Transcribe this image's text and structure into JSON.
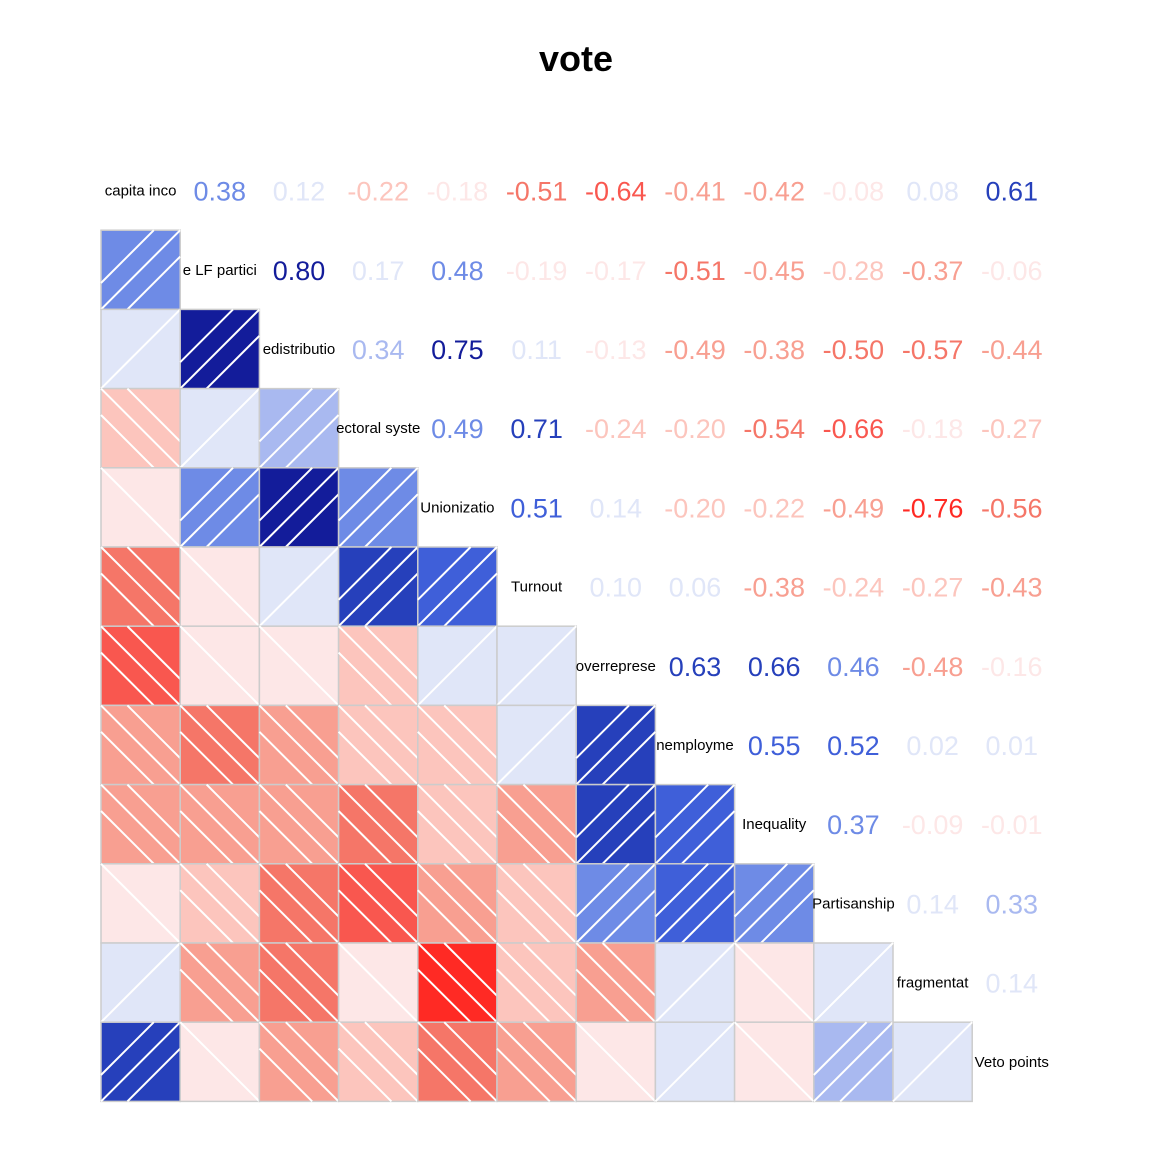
{
  "chart_data": {
    "type": "heatmap",
    "title": "vote",
    "variables": [
      "capita inco",
      "e LF partici",
      "edistributio",
      "ectoral syste",
      "Unionizatio",
      "Turnout",
      "overreprese",
      "nemployme",
      "Inequality",
      "Partisanship",
      "fragmentat",
      "Veto points"
    ],
    "matrix": [
      [
        1,
        0.38,
        0.12,
        -0.22,
        -0.18,
        -0.51,
        -0.64,
        -0.41,
        -0.42,
        -0.08,
        0.08,
        0.61
      ],
      [
        0.38,
        1,
        0.8,
        0.17,
        0.48,
        -0.19,
        -0.17,
        -0.51,
        -0.45,
        -0.28,
        -0.37,
        -0.06
      ],
      [
        0.12,
        0.8,
        1,
        0.34,
        0.75,
        0.11,
        -0.13,
        -0.49,
        -0.38,
        -0.5,
        -0.57,
        -0.44
      ],
      [
        -0.22,
        0.17,
        0.34,
        1,
        0.49,
        0.71,
        -0.24,
        -0.2,
        -0.54,
        -0.66,
        -0.18,
        -0.27
      ],
      [
        -0.18,
        0.48,
        0.75,
        0.49,
        1,
        0.51,
        0.14,
        -0.2,
        -0.22,
        -0.49,
        -0.76,
        -0.56
      ],
      [
        -0.51,
        -0.19,
        0.11,
        0.71,
        0.51,
        1,
        0.1,
        0.06,
        -0.38,
        -0.24,
        -0.27,
        -0.43
      ],
      [
        -0.64,
        -0.17,
        -0.13,
        -0.24,
        0.14,
        0.1,
        1,
        0.63,
        0.66,
        0.46,
        -0.48,
        -0.16
      ],
      [
        -0.41,
        -0.51,
        -0.49,
        -0.2,
        -0.2,
        0.06,
        0.63,
        1,
        0.55,
        0.52,
        0.02,
        0.01
      ],
      [
        -0.42,
        -0.45,
        -0.38,
        -0.54,
        -0.22,
        -0.38,
        0.66,
        0.55,
        1,
        0.37,
        -0.09,
        -0.01
      ],
      [
        -0.08,
        -0.28,
        -0.5,
        -0.66,
        -0.49,
        -0.24,
        0.46,
        0.52,
        0.37,
        1,
        0.14,
        0.33
      ],
      [
        0.08,
        -0.37,
        -0.57,
        -0.18,
        -0.76,
        -0.27,
        -0.48,
        0.02,
        -0.09,
        0.14,
        1,
        0.14
      ],
      [
        0.61,
        -0.06,
        -0.44,
        -0.27,
        -0.56,
        -0.43,
        -0.16,
        0.01,
        -0.01,
        0.33,
        0.14,
        1
      ]
    ],
    "lower_panel": "shade",
    "upper_panel": "number",
    "colors": {
      "positive": [
        "#E0E6F8",
        "#A9B9F0",
        "#6E8BE6",
        "#3F5FD9",
        "#2640BB",
        "#131C9A"
      ],
      "negative": [
        "#FDE7E7",
        "#FCC5BD",
        "#F89F91",
        "#F57668",
        "#F9574F",
        "#FF2A24"
      ],
      "grid": "#CCCCCC",
      "hatch": "#FFFFFF"
    }
  }
}
